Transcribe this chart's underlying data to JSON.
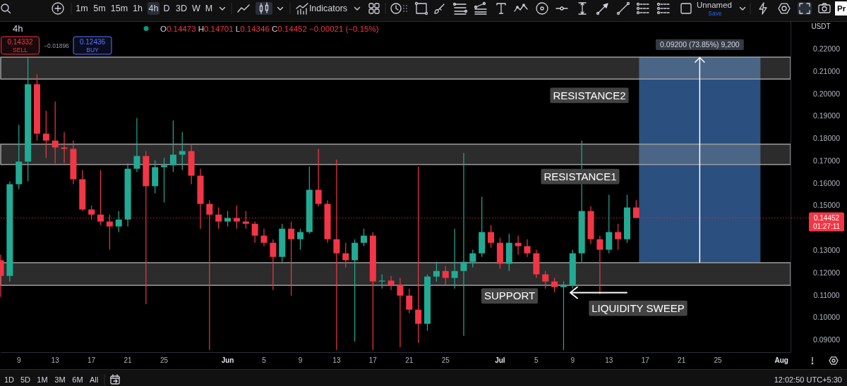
{
  "chart_data": {
    "type": "candlestick",
    "title": "4h",
    "x": [
      "--05-07",
      "--05-08",
      "--05-09",
      "--05-10",
      "--05-11",
      "--05-12",
      "--05-13",
      "--05-14",
      "--05-15",
      "--05-16",
      "--05-17",
      "--05-18",
      "--05-19",
      "--05-20",
      "--05-21",
      "--05-22",
      "--05-23",
      "--05-24",
      "--05-25",
      "--05-26",
      "--05-27",
      "--05-28",
      "--05-29",
      "--05-30",
      "--05-31",
      "--06-01",
      "--06-02",
      "--06-03",
      "--06-04",
      "--06-05",
      "--06-06",
      "--06-07",
      "--06-08",
      "--06-09",
      "--06-10",
      "--06-11",
      "--06-12",
      "--06-13",
      "--06-14",
      "--06-15",
      "--06-16",
      "--06-17",
      "--06-18",
      "--06-19",
      "--06-20",
      "--06-21",
      "--06-22",
      "--06-23",
      "--06-24",
      "--06-25",
      "--06-26",
      "--06-27",
      "--06-28",
      "--06-29",
      "--06-30",
      "--07-01",
      "--07-02",
      "--07-03",
      "--07-04",
      "--07-05",
      "--07-06",
      "--07-07",
      "--07-08",
      "--07-09",
      "--07-10",
      "--07-11",
      "--07-12",
      "--07-13",
      "--07-14",
      "--07-15",
      "--07-16"
    ],
    "ohlc": [
      [
        0.1256,
        0.1281,
        0.1092,
        0.1186
      ],
      [
        0.1186,
        0.1609,
        0.1161,
        0.1596
      ],
      [
        0.1596,
        0.1861,
        0.1574,
        0.1697
      ],
      [
        0.1697,
        0.216,
        0.1609,
        0.2043
      ],
      [
        0.2043,
        0.2087,
        0.1791,
        0.1822
      ],
      [
        0.1822,
        0.1924,
        0.1713,
        0.1791
      ],
      [
        0.1791,
        0.1965,
        0.169,
        0.176
      ],
      [
        0.176,
        0.1829,
        0.169,
        0.1754
      ],
      [
        0.1754,
        0.1791,
        0.1596,
        0.1618
      ],
      [
        0.1618,
        0.1659,
        0.1476,
        0.1483
      ],
      [
        0.1483,
        0.1501,
        0.1438,
        0.146
      ],
      [
        0.146,
        0.1659,
        0.1413,
        0.1429
      ],
      [
        0.1429,
        0.146,
        0.1303,
        0.1407
      ],
      [
        0.1407,
        0.1476,
        0.1382,
        0.1438
      ],
      [
        0.1438,
        0.169,
        0.1407,
        0.1665
      ],
      [
        0.1665,
        0.1892,
        0.165,
        0.1722
      ],
      [
        0.1722,
        0.1744,
        0.106,
        0.1587
      ],
      [
        0.1587,
        0.1703,
        0.1555,
        0.1672
      ],
      [
        0.1672,
        0.1713,
        0.1514,
        0.1681
      ],
      [
        0.1681,
        0.188,
        0.165,
        0.1728
      ],
      [
        0.1728,
        0.1829,
        0.1659,
        0.1744
      ],
      [
        0.1744,
        0.1776,
        0.1596,
        0.1634
      ],
      [
        0.1634,
        0.1665,
        0.1397,
        0.1508
      ],
      [
        0.1508,
        0.1524,
        0.0855,
        0.146
      ],
      [
        0.146,
        0.1492,
        0.1397,
        0.1429
      ],
      [
        0.1429,
        0.1476,
        0.1407,
        0.1445
      ],
      [
        0.1445,
        0.1501,
        0.1397,
        0.1429
      ],
      [
        0.1429,
        0.1476,
        0.1397,
        0.1419
      ],
      [
        0.1419,
        0.1429,
        0.1334,
        0.1366
      ],
      [
        0.1366,
        0.1397,
        0.1319,
        0.1334
      ],
      [
        0.1334,
        0.135,
        0.1123,
        0.1271
      ],
      [
        0.1271,
        0.1419,
        0.1249,
        0.1397
      ],
      [
        0.1397,
        0.1429,
        0.1098,
        0.135
      ],
      [
        0.135,
        0.1397,
        0.1303,
        0.1382
      ],
      [
        0.1382,
        0.1675,
        0.1375,
        0.1571
      ],
      [
        0.1571,
        0.1754,
        0.1498,
        0.1508
      ],
      [
        0.1508,
        0.1524,
        0.1334,
        0.135
      ],
      [
        0.135,
        0.1706,
        0.0855,
        0.1287
      ],
      [
        0.1287,
        0.1334,
        0.1224,
        0.1256
      ],
      [
        0.1256,
        0.135,
        0.0893,
        0.1334
      ],
      [
        0.1334,
        0.1397,
        0.1319,
        0.1366
      ],
      [
        0.1366,
        0.1382,
        0.0855,
        0.1161
      ],
      [
        0.1161,
        0.1193,
        0.1129,
        0.1165
      ],
      [
        0.1165,
        0.1186,
        0.1123,
        0.1145
      ],
      [
        0.1145,
        0.1177,
        0.0868,
        0.1098
      ],
      [
        0.1098,
        0.1129,
        0.1019,
        0.1035
      ],
      [
        0.1035,
        0.1675,
        0.0887,
        0.0972
      ],
      [
        0.0972,
        0.1193,
        0.0941,
        0.1183
      ],
      [
        0.1183,
        0.1249,
        0.1161,
        0.1208
      ],
      [
        0.1208,
        0.123,
        0.1145,
        0.1177
      ],
      [
        0.1177,
        0.1397,
        0.1129,
        0.1208
      ],
      [
        0.1208,
        0.1735,
        0.0918,
        0.1249
      ],
      [
        0.1249,
        0.1303,
        0.1224,
        0.1287
      ],
      [
        0.1287,
        0.1539,
        0.1271,
        0.1382
      ],
      [
        0.1382,
        0.1413,
        0.1312,
        0.1334
      ],
      [
        0.1334,
        0.1356,
        0.1218,
        0.124
      ],
      [
        0.124,
        0.1375,
        0.1208,
        0.1334
      ],
      [
        0.1334,
        0.1366,
        0.1281,
        0.1319
      ],
      [
        0.1319,
        0.135,
        0.1271,
        0.1287
      ],
      [
        0.1287,
        0.1303,
        0.1177,
        0.1193
      ],
      [
        0.1193,
        0.1208,
        0.1129,
        0.1161
      ],
      [
        0.1161,
        0.1177,
        0.1114,
        0.1136
      ],
      [
        0.1136,
        0.1161,
        0.0855,
        0.1145
      ],
      [
        0.1145,
        0.1303,
        0.1129,
        0.1287
      ],
      [
        0.1287,
        0.1791,
        0.1249,
        0.1476
      ],
      [
        0.1476,
        0.1498,
        0.1328,
        0.135
      ],
      [
        0.135,
        0.1366,
        0.1104,
        0.1303
      ],
      [
        0.1303,
        0.1549,
        0.1287,
        0.1382
      ],
      [
        0.1382,
        0.1419,
        0.1303,
        0.135
      ],
      [
        0.135,
        0.1549,
        0.1334,
        0.1492
      ],
      [
        0.1492,
        0.1524,
        0.1445,
        0.14452
      ]
    ],
    "colors": [
      "#f23645",
      "#22ab94",
      "#22ab94",
      "#22ab94",
      "#f23645",
      "#f23645",
      "#f23645",
      "#f23645",
      "#f23645",
      "#f23645",
      "#f23645",
      "#f23645",
      "#f23645",
      "#22ab94",
      "#22ab94",
      "#22ab94",
      "#f23645",
      "#22ab94",
      "#22ab94",
      "#22ab94",
      "#22ab94",
      "#f23645",
      "#f23645",
      "#f23645",
      "#f23645",
      "#22ab94",
      "#f23645",
      "#f23645",
      "#f23645",
      "#f23645",
      "#f23645",
      "#22ab94",
      "#f23645",
      "#22ab94",
      "#22ab94",
      "#f23645",
      "#f23645",
      "#f23645",
      "#f23645",
      "#22ab94",
      "#22ab94",
      "#f23645",
      "#22ab94",
      "#f23645",
      "#f23645",
      "#f23645",
      "#f23645",
      "#22ab94",
      "#22ab94",
      "#f23645",
      "#22ab94",
      "#22ab94",
      "#22ab94",
      "#22ab94",
      "#f23645",
      "#f23645",
      "#22ab94",
      "#f23645",
      "#f23645",
      "#f23645",
      "#f23645",
      "#f23645",
      "#22ab94",
      "#22ab94",
      "#22ab94",
      "#f23645",
      "#f23645",
      "#22ab94",
      "#f23645",
      "#22ab94",
      "#f23645"
    ],
    "xlim": [
      "--05-07",
      "--08-02"
    ],
    "xticks": [
      {
        "value": "--05-09",
        "label": "9"
      },
      {
        "value": "--05-13",
        "label": "13"
      },
      {
        "value": "--05-17",
        "label": "17"
      },
      {
        "value": "--05-21",
        "label": "21"
      },
      {
        "value": "--05-25",
        "label": "25"
      },
      {
        "value": "--06-01",
        "label": "Jun"
      },
      {
        "value": "--06-05",
        "label": "5"
      },
      {
        "value": "--06-09",
        "label": "9"
      },
      {
        "value": "--06-13",
        "label": "13"
      },
      {
        "value": "--06-17",
        "label": "17"
      },
      {
        "value": "--06-21",
        "label": "21"
      },
      {
        "value": "--06-25",
        "label": "25"
      },
      {
        "value": "--07-01",
        "label": "Jul"
      },
      {
        "value": "--07-05",
        "label": "5"
      },
      {
        "value": "--07-09",
        "label": "9"
      },
      {
        "value": "--07-13",
        "label": "13"
      },
      {
        "value": "--07-17",
        "label": "17"
      },
      {
        "value": "--07-21",
        "label": "21"
      },
      {
        "value": "--07-25",
        "label": "25"
      },
      {
        "value": "--08-01",
        "label": "Aug"
      }
    ],
    "ylim": [
      0.0845,
      0.2325
    ],
    "yticks": [
      {
        "value": 0.09,
        "label": "0.09000"
      },
      {
        "value": 0.1,
        "label": "0.10000"
      },
      {
        "value": 0.11,
        "label": "0.11000"
      },
      {
        "value": 0.12,
        "label": "0.12000"
      },
      {
        "value": 0.13,
        "label": "0.13000"
      },
      {
        "value": 0.15,
        "label": "0.15000"
      },
      {
        "value": 0.16,
        "label": "0.16000"
      },
      {
        "value": 0.17,
        "label": "0.17000"
      },
      {
        "value": 0.18,
        "label": "0.18000"
      },
      {
        "value": 0.19,
        "label": "0.19000"
      },
      {
        "value": 0.2,
        "label": "0.20000"
      },
      {
        "value": 0.21,
        "label": "0.21000"
      },
      {
        "value": 0.22,
        "label": "0.22000"
      }
    ],
    "series": [
      {
        "type": "bar",
        "x": [
          "--07-23"
        ],
        "base": [
          0.1245
        ],
        "values": [
          0.092
        ],
        "color": "#2b4f7e",
        "value_labels": [
          "0.09200 (73.85%) 9,200"
        ]
      }
    ],
    "bands": [
      {
        "axis": "y",
        "from": 0.2066,
        "to": 0.2164,
        "color": "#9e9e9e",
        "label": "RESISTANCE2"
      },
      {
        "axis": "y",
        "from": 0.1684,
        "to": 0.1775,
        "color": "#9e9e9e",
        "label": "RESISTANCE1"
      },
      {
        "axis": "y",
        "from": 0.1144,
        "to": 0.1245,
        "color": "#9e9e9e",
        "label": "SUPPORT"
      }
    ],
    "ref_lines": [
      {
        "axis": "y",
        "value": 0.14452,
        "label": "0.14452",
        "color": "#f23645",
        "line_style": "dotted"
      }
    ],
    "annotations": [
      "O0.14473 H0.14701 L0.14346 C0.14452 −0.00021 (−0.15%)",
      "0.14332",
      "SELL",
      "−0.01896",
      "0.12436",
      "BUY",
      "01:27:11",
      "USDT",
      "1m",
      "5m",
      "15m",
      "1h",
      "4h",
      "D",
      "3D",
      "W",
      "M",
      "Indicators",
      "Unnamed",
      "Save",
      "Pr",
      "1D",
      "5D",
      "1M",
      "3M",
      "6M",
      "All",
      "12:02:50 UTC+5:30",
      "LIQUIDITY SWEEP"
    ]
  }
}
